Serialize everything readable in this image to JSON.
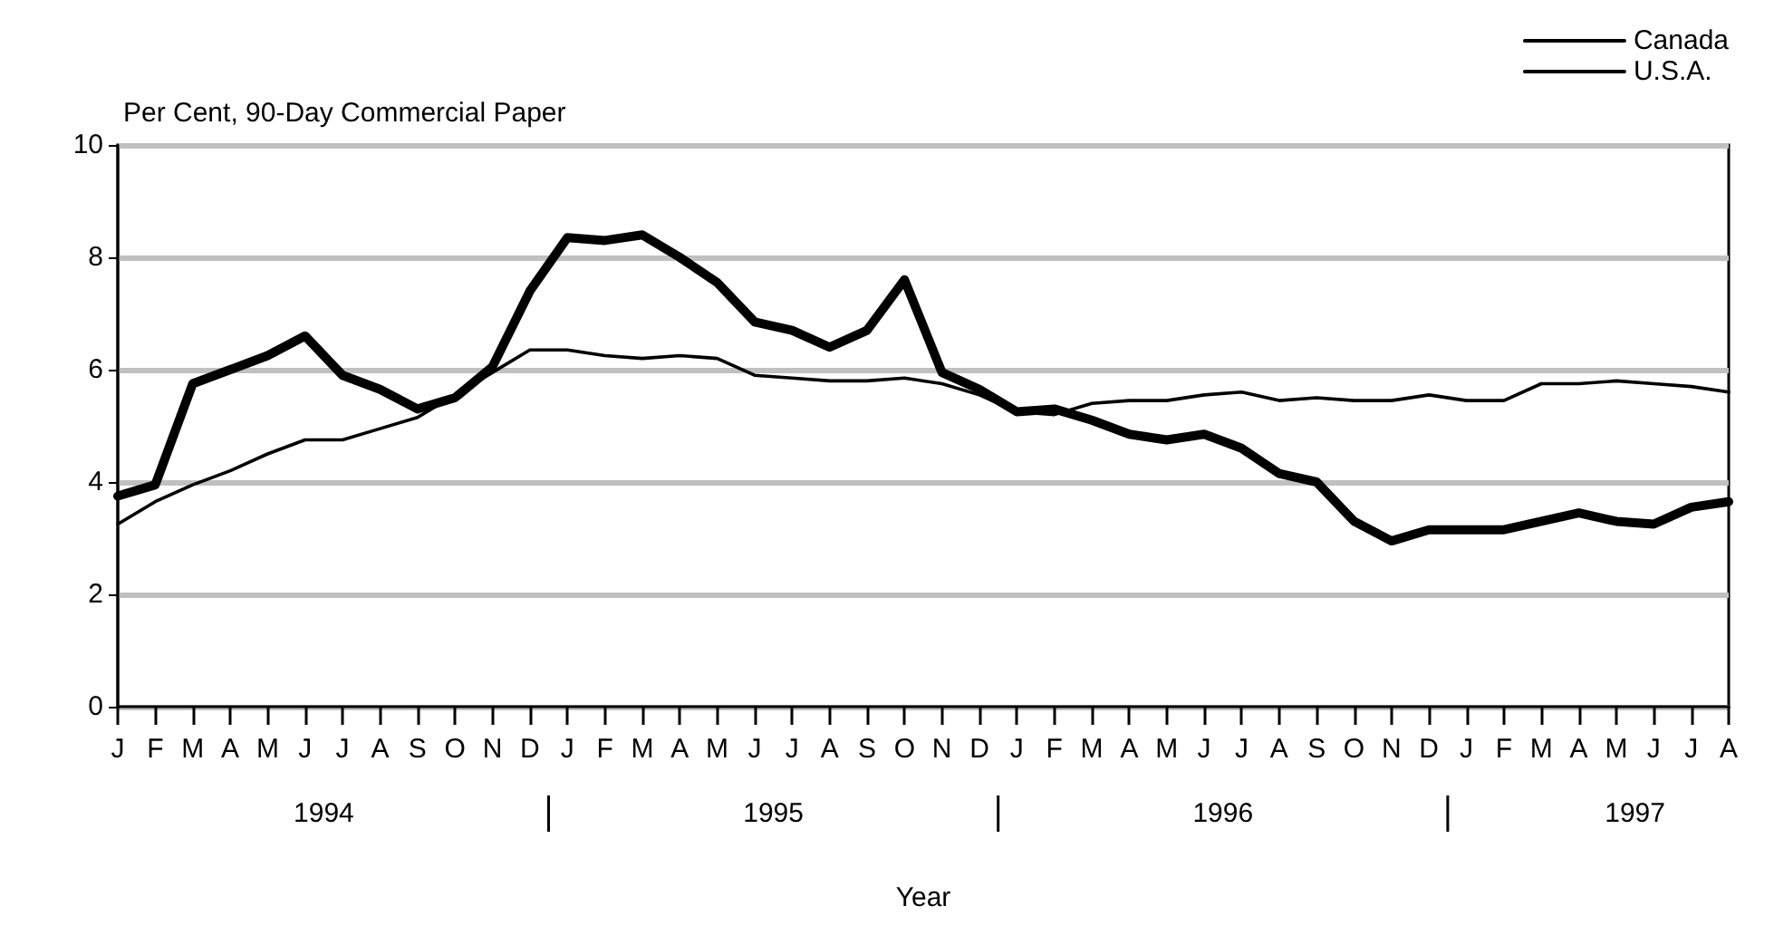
{
  "chart_data": {
    "type": "line",
    "ylabel": "Per Cent, 90-Day Commercial Paper",
    "xlabel": "Year",
    "categories": [
      "J",
      "F",
      "M",
      "A",
      "M",
      "J",
      "J",
      "A",
      "S",
      "O",
      "N",
      "D",
      "J",
      "F",
      "M",
      "A",
      "M",
      "J",
      "J",
      "A",
      "S",
      "O",
      "N",
      "D",
      "J",
      "F",
      "M",
      "A",
      "M",
      "J",
      "J",
      "A",
      "S",
      "O",
      "N",
      "D",
      "J",
      "F",
      "M",
      "A",
      "M",
      "J",
      "J",
      "A"
    ],
    "annotations": [
      "1994",
      "1995",
      "1996",
      "1997"
    ],
    "series": [
      {
        "name": "Canada",
        "color": "#000000",
        "values": [
          3.75,
          3.95,
          5.75,
          6.0,
          6.25,
          6.6,
          5.9,
          5.65,
          5.3,
          5.5,
          6.05,
          7.4,
          8.35,
          8.3,
          8.4,
          8.0,
          7.55,
          6.85,
          6.7,
          6.4,
          6.7,
          7.6,
          5.95,
          5.65,
          5.25,
          5.3,
          5.1,
          4.85,
          4.75,
          4.85,
          4.6,
          4.15,
          4.0,
          3.3,
          2.95,
          3.15,
          3.15,
          3.15,
          3.3,
          3.45,
          3.3,
          3.25,
          3.55,
          3.65
        ]
      },
      {
        "name": "U.S.A.",
        "color": "#000000",
        "values": [
          3.25,
          3.65,
          3.95,
          4.2,
          4.5,
          4.75,
          4.75,
          4.95,
          5.15,
          5.55,
          5.95,
          6.35,
          6.35,
          6.25,
          6.2,
          6.25,
          6.2,
          5.9,
          5.85,
          5.8,
          5.8,
          5.85,
          5.75,
          5.55,
          5.25,
          5.2,
          5.4,
          5.45,
          5.45,
          5.55,
          5.6,
          5.45,
          5.5,
          5.45,
          5.45,
          5.55,
          5.45,
          5.45,
          5.75,
          5.75,
          5.8,
          5.75,
          5.7,
          5.6
        ]
      }
    ],
    "ylim": [
      0,
      10
    ],
    "yticks": [
      0,
      2,
      4,
      6,
      8,
      10
    ],
    "grid": "y",
    "legend": "top right",
    "marker": "none",
    "line_style": "solid"
  }
}
